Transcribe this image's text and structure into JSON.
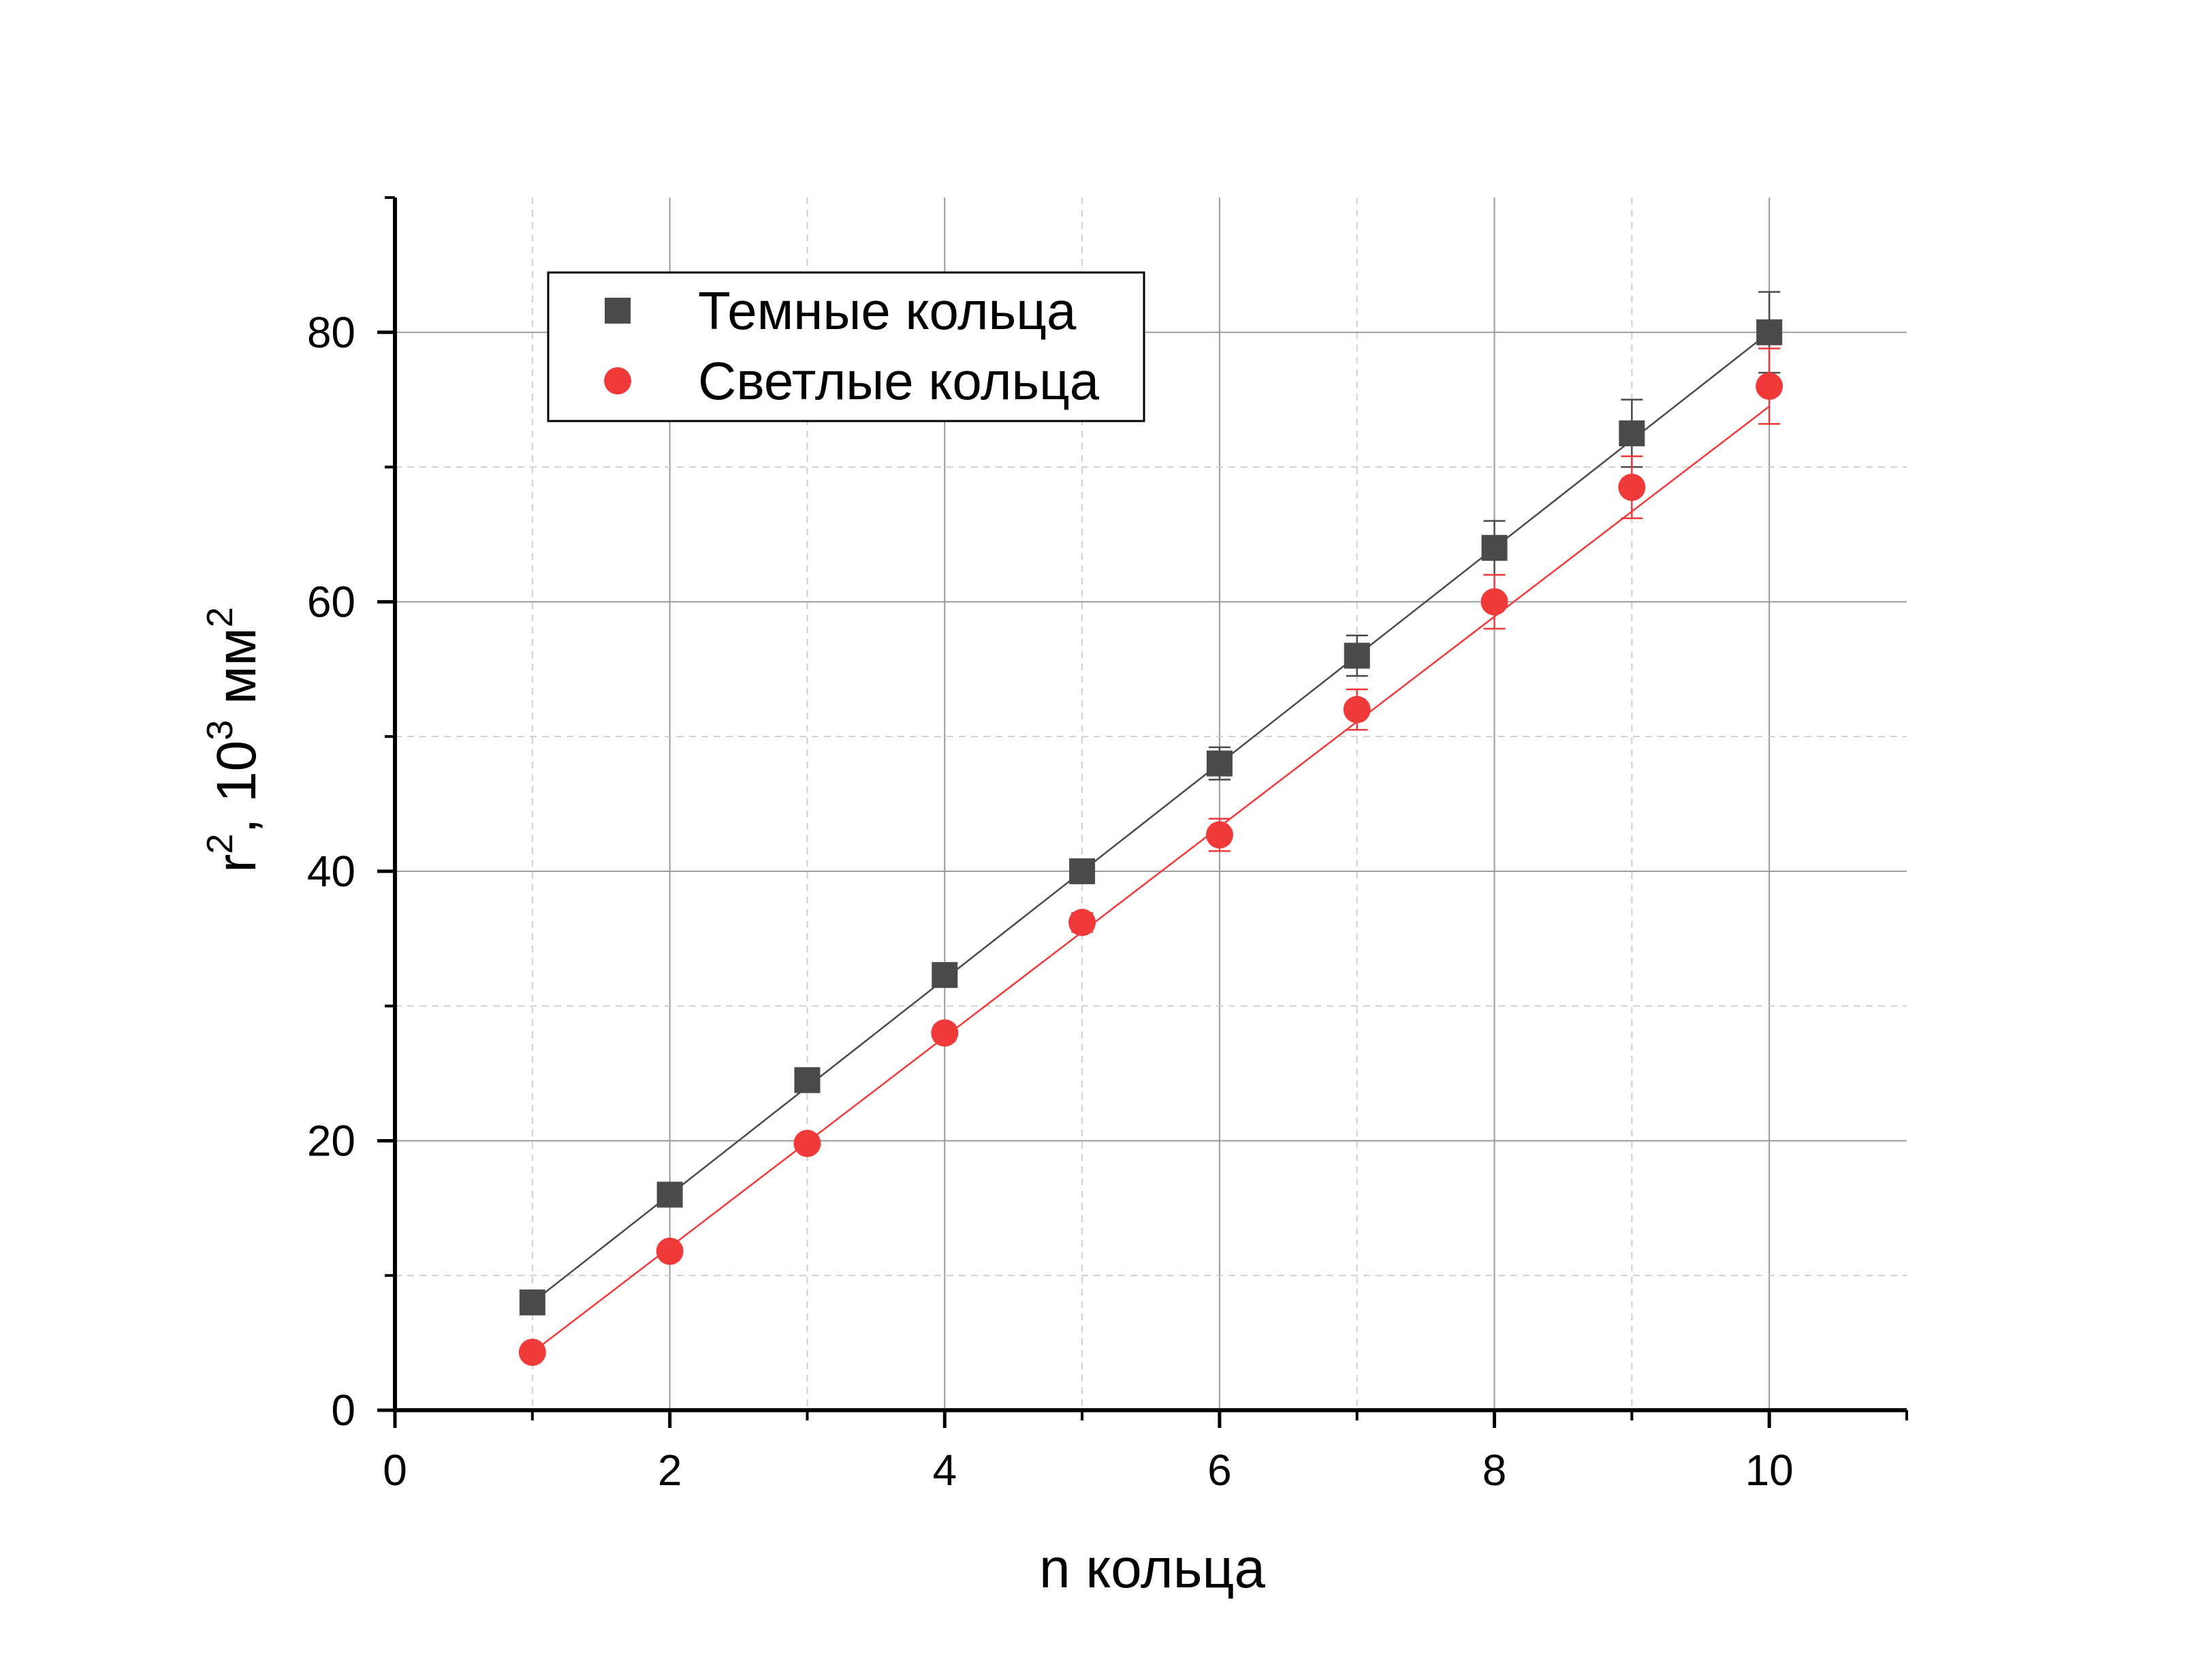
{
  "chart_data": {
    "type": "scatter",
    "xlabel": "n кольца",
    "ylabel": {
      "base": "r",
      "sup1": "2",
      "mid": ", 10",
      "sup2": "3",
      "unit": " мм",
      "sup3": "2"
    },
    "xlim": [
      0,
      11
    ],
    "ylim": [
      0,
      90
    ],
    "x_ticks": [
      0,
      2,
      4,
      6,
      8,
      10
    ],
    "x_tick_labels": [
      "0",
      "2",
      "4",
      "6",
      "8",
      "10"
    ],
    "x_minor_ticks": [
      1,
      3,
      5,
      7,
      9,
      11
    ],
    "y_ticks": [
      0,
      20,
      40,
      60,
      80
    ],
    "y_tick_labels": [
      "0",
      "20",
      "40",
      "60",
      "80"
    ],
    "y_minor_ticks": [
      10,
      30,
      50,
      70,
      90
    ],
    "grid": true,
    "legend_position": "top-left",
    "series": [
      {
        "name": "Темные кольца",
        "marker": "square",
        "color": "#4a4a4a",
        "x": [
          1,
          2,
          3,
          4,
          5,
          6,
          7,
          8,
          9,
          10
        ],
        "y": [
          8.0,
          16.0,
          24.5,
          32.3,
          40.0,
          48.0,
          56.0,
          64.0,
          72.5,
          80.0
        ],
        "yerr": [
          0.3,
          0.5,
          0.6,
          0.7,
          0.8,
          1.2,
          1.5,
          2.0,
          2.5,
          3.0
        ],
        "fit": [
          0.0,
          8.0
        ]
      },
      {
        "name": "Светлые кольца",
        "marker": "circle",
        "color": "#f03a3a",
        "x": [
          1,
          2,
          3,
          4,
          5,
          6,
          7,
          8,
          9,
          10
        ],
        "y": [
          4.3,
          11.8,
          19.8,
          28.0,
          36.2,
          42.7,
          52.0,
          60.0,
          68.5,
          76.0
        ],
        "yerr": [
          0.3,
          0.4,
          0.5,
          0.6,
          0.7,
          1.2,
          1.5,
          2.0,
          2.3,
          2.8
        ],
        "fit": [
          -3.5,
          7.8
        ]
      }
    ]
  }
}
